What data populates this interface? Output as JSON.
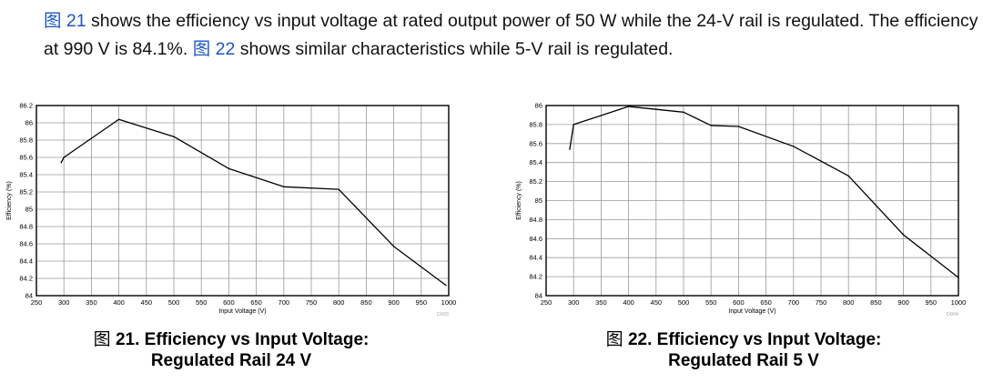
{
  "paragraph": {
    "fig_ref_a": "图 21",
    "text_a": " shows the efficiency vs input voltage at rated output power of 50 W while the 24-V rail is regulated. The efficiency at 990 V is 84.1%. ",
    "fig_ref_b": "图 22",
    "text_b": " shows similar characteristics while 5-V rail is regulated."
  },
  "captions": [
    {
      "prefix": "图",
      "text": " 21. Efficiency vs Input Voltage:",
      "line2": "Regulated Rail 24 V"
    },
    {
      "prefix": "图",
      "text": " 22. Efficiency vs Input Voltage:",
      "line2": "Regulated Rail 5 V"
    }
  ],
  "chart_data": [
    {
      "type": "line",
      "xlabel": "Input Voltage (V)",
      "ylabel": "Efficiency (%)",
      "xlim": [
        250,
        1000
      ],
      "ylim": [
        84,
        86.2
      ],
      "xticks": [
        250,
        300,
        350,
        400,
        450,
        500,
        550,
        600,
        650,
        700,
        750,
        800,
        850,
        900,
        950,
        1000
      ],
      "yticks": [
        84,
        84.2,
        84.4,
        84.6,
        84.8,
        85,
        85.2,
        85.4,
        85.6,
        85.8,
        86,
        86.2
      ],
      "grid": true,
      "code": "D003",
      "x": [
        295,
        300,
        400,
        500,
        600,
        700,
        800,
        900,
        995
      ],
      "y": [
        85.54,
        85.6,
        86.04,
        85.84,
        85.47,
        85.26,
        85.23,
        84.57,
        84.12
      ]
    },
    {
      "type": "line",
      "xlabel": "Input Voltage (V)",
      "ylabel": "Efficiency (%)",
      "xlim": [
        250,
        1000
      ],
      "ylim": [
        84,
        86
      ],
      "xticks": [
        250,
        300,
        350,
        400,
        450,
        500,
        550,
        600,
        650,
        700,
        750,
        800,
        850,
        900,
        950,
        1000
      ],
      "yticks": [
        84,
        84.2,
        84.4,
        84.6,
        84.8,
        85,
        85.2,
        85.4,
        85.6,
        85.8,
        86
      ],
      "grid": true,
      "code": "D004",
      "x": [
        293,
        300,
        400,
        500,
        550,
        600,
        700,
        800,
        900,
        1000
      ],
      "y": [
        85.54,
        85.8,
        85.99,
        85.93,
        85.79,
        85.78,
        85.57,
        85.26,
        84.64,
        84.19
      ]
    }
  ]
}
